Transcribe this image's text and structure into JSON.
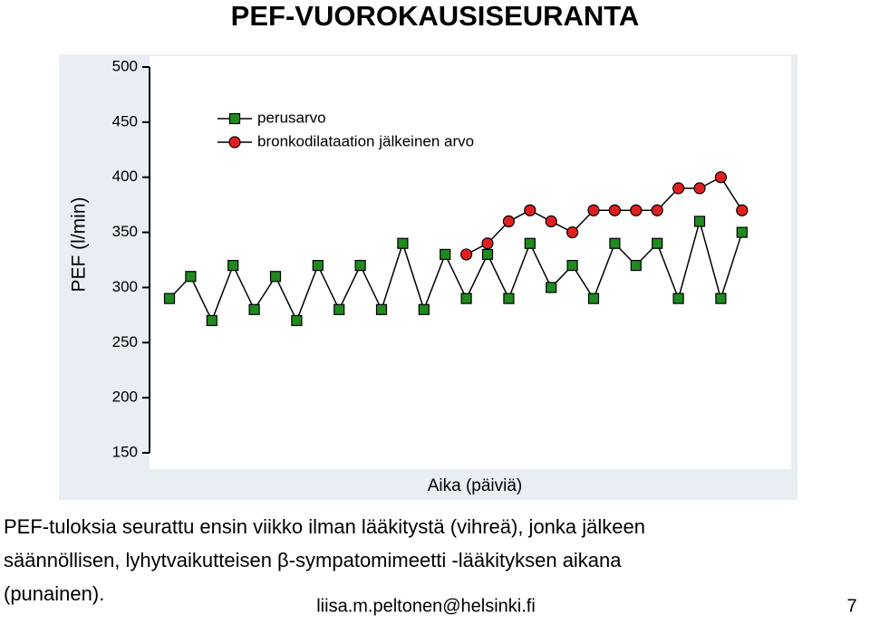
{
  "title": "PEF-VUOROKAUSISEURANTA",
  "caption": [
    "PEF-tuloksia seurattu ensin viikko ilman lääkitystä (vihreä), jonka jälkeen",
    "säännöllisen, lyhytvaikutteisen β-sympatomimeetti -lääkityksen aikana",
    "(punainen)."
  ],
  "footer": "liisa.m.peltonen@helsinki.fi",
  "page_number": 7,
  "chart_data": {
    "type": "line",
    "xlabel": "Aika (päiviä)",
    "ylabel": "PEF (l/min)",
    "categories": [
      null,
      null,
      null,
      null,
      null,
      null,
      null,
      null,
      null,
      null,
      null,
      null,
      null,
      null,
      null,
      null,
      null,
      null,
      null,
      null,
      null,
      null,
      null,
      null,
      null,
      null,
      null,
      null
    ],
    "series": [
      {
        "name": "perusarvo",
        "color": "#1f8a1f",
        "marker": "square",
        "values": [
          290,
          310,
          270,
          320,
          280,
          310,
          270,
          320,
          280,
          320,
          280,
          340,
          280,
          330,
          290,
          330,
          290,
          340,
          300,
          320,
          290,
          340,
          320,
          340,
          290,
          360,
          290,
          350
        ]
      },
      {
        "name": "bronkodilataation jälkeinen arvo",
        "color": "#e02020",
        "marker": "circle",
        "values": [
          null,
          null,
          null,
          null,
          null,
          null,
          null,
          null,
          null,
          null,
          null,
          null,
          null,
          null,
          330,
          340,
          360,
          370,
          360,
          350,
          370,
          370,
          370,
          370,
          390,
          390,
          400,
          370
        ]
      }
    ],
    "ylim": [
      150,
      500
    ],
    "yticks": [
      150,
      200,
      250,
      300,
      350,
      400,
      450,
      500
    ],
    "legend": "upper left",
    "grid": false
  }
}
